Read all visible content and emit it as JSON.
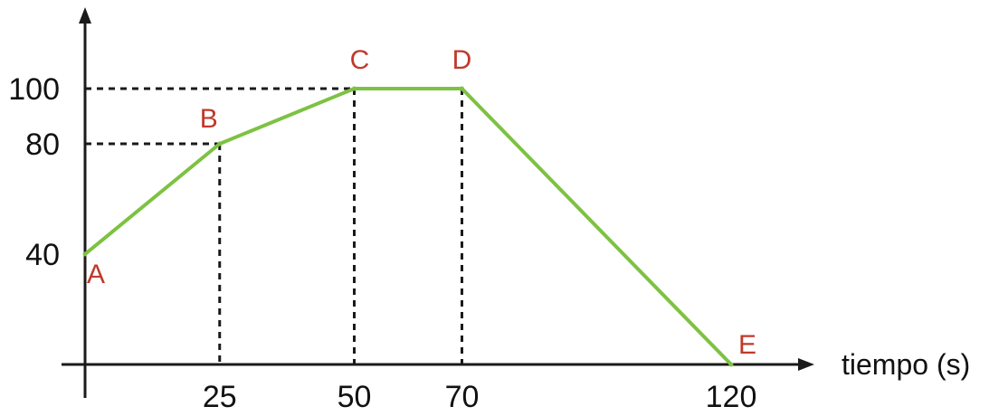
{
  "chart_data": {
    "type": "line",
    "title": "",
    "xlabel": "tiempo (s)",
    "ylabel": "",
    "xlim": [
      0,
      130
    ],
    "ylim": [
      0,
      115
    ],
    "x_ticks": [
      25,
      50,
      70,
      120
    ],
    "x_tick_labels": [
      "25",
      "50",
      "70",
      "120"
    ],
    "y_ticks": [
      40,
      80,
      100
    ],
    "y_tick_labels": [
      "40",
      "80",
      "100"
    ],
    "series": [
      {
        "points": [
          {
            "label": "A",
            "x": 0,
            "y": 40
          },
          {
            "label": "B",
            "x": 25,
            "y": 80
          },
          {
            "label": "C",
            "x": 50,
            "y": 100
          },
          {
            "label": "D",
            "x": 70,
            "y": 100
          },
          {
            "label": "E",
            "x": 120,
            "y": 0
          }
        ]
      }
    ],
    "guide_lines": true,
    "grid": false,
    "colors": {
      "line": "#7dc242",
      "point_label": "#c0392b",
      "axis": "#1a1a1a",
      "guide": "#1a1a1a"
    }
  }
}
